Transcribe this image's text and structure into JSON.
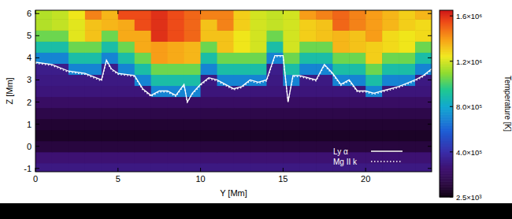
{
  "chart_data": {
    "type": "heatmap",
    "x_label": "Y [Mm]",
    "y_label": "Z [Mm]",
    "xlim": [
      0,
      24
    ],
    "ylim": [
      -1.15,
      6.15
    ],
    "xticks": [
      0,
      5,
      10,
      15,
      20
    ],
    "yticks": [
      -1,
      0,
      1,
      2,
      3,
      4,
      5,
      6
    ],
    "legend": "lower right",
    "cells": {
      "x": [
        0.5,
        1.5,
        2.5,
        3.5,
        4.5,
        5.5,
        6.5,
        7.5,
        8.5,
        9.5,
        10.5,
        11.5,
        12.5,
        13.5,
        14.5,
        15.5,
        16.5,
        17.5,
        18.5,
        19.5,
        20.5,
        21.5,
        22.5,
        23.5
      ],
      "y": [
        -1,
        -0.5,
        0,
        0.5,
        1,
        1.5,
        2,
        2.5,
        3,
        3.5,
        4,
        4.5,
        5,
        5.5,
        6
      ],
      "values": [
        [
          300000,
          300000,
          300000,
          300000,
          300000,
          300000,
          300000,
          300000,
          300000,
          300000,
          300000,
          300000,
          300000,
          300000,
          300000,
          300000,
          300000,
          300000,
          300000,
          300000,
          300000,
          300000,
          300000,
          300000
        ],
        [
          260000,
          260000,
          260000,
          260000,
          260000,
          260000,
          260000,
          260000,
          260000,
          260000,
          260000,
          260000,
          260000,
          260000,
          260000,
          260000,
          260000,
          260000,
          260000,
          260000,
          260000,
          260000,
          260000,
          260000
        ],
        [
          120000,
          120000,
          120000,
          120000,
          120000,
          120000,
          120000,
          120000,
          120000,
          120000,
          120000,
          120000,
          120000,
          120000,
          120000,
          120000,
          120000,
          120000,
          120000,
          120000,
          120000,
          120000,
          120000,
          120000
        ],
        [
          60000,
          60000,
          60000,
          60000,
          60000,
          60000,
          60000,
          60000,
          60000,
          60000,
          60000,
          60000,
          60000,
          60000,
          60000,
          60000,
          60000,
          60000,
          60000,
          60000,
          60000,
          60000,
          60000,
          60000
        ],
        [
          90000,
          90000,
          90000,
          90000,
          90000,
          90000,
          90000,
          90000,
          90000,
          90000,
          90000,
          90000,
          90000,
          90000,
          90000,
          90000,
          90000,
          90000,
          90000,
          90000,
          90000,
          90000,
          90000,
          90000
        ],
        [
          150000,
          150000,
          150000,
          150000,
          150000,
          150000,
          150000,
          150000,
          150000,
          150000,
          150000,
          150000,
          150000,
          150000,
          150000,
          150000,
          150000,
          150000,
          150000,
          150000,
          150000,
          150000,
          150000,
          150000
        ],
        [
          220000,
          220000,
          220000,
          220000,
          220000,
          220000,
          220000,
          220000,
          220000,
          220000,
          220000,
          220000,
          220000,
          220000,
          220000,
          220000,
          220000,
          220000,
          220000,
          220000,
          220000,
          220000,
          220000,
          220000
        ],
        [
          280000,
          280000,
          280000,
          280000,
          280000,
          280000,
          280000,
          700000,
          700000,
          700000,
          280000,
          280000,
          280000,
          280000,
          280000,
          280000,
          280000,
          280000,
          280000,
          280000,
          700000,
          280000,
          280000,
          280000
        ],
        [
          300000,
          300000,
          300000,
          300000,
          300000,
          300000,
          700000,
          900000,
          900000,
          900000,
          300000,
          700000,
          700000,
          700000,
          300000,
          700000,
          300000,
          300000,
          700000,
          700000,
          900000,
          700000,
          700000,
          300000
        ],
        [
          320000,
          320000,
          700000,
          700000,
          320000,
          700000,
          900000,
          1050000,
          1050000,
          1050000,
          700000,
          900000,
          900000,
          900000,
          320000,
          900000,
          700000,
          700000,
          900000,
          900000,
          1050000,
          900000,
          900000,
          700000
        ],
        [
          700000,
          700000,
          900000,
          900000,
          700000,
          900000,
          1050000,
          1400000,
          1375000,
          1350000,
          900000,
          1050000,
          1050000,
          1050000,
          700000,
          1050000,
          900000,
          900000,
          1050000,
          1050000,
          1300000,
          1050000,
          1050000,
          900000
        ],
        [
          900000,
          900000,
          1050000,
          1050000,
          900000,
          1050000,
          1375000,
          1400000,
          1375000,
          1350000,
          1050000,
          1325000,
          1250000,
          1200000,
          900000,
          1200000,
          1050000,
          1050000,
          1350000,
          1325000,
          1300000,
          1275000,
          1250000,
          1050000
        ],
        [
          1050000,
          1050000,
          1225000,
          1325000,
          1050000,
          1375000,
          1375000,
          1600000,
          1550000,
          1500000,
          1325000,
          1325000,
          1250000,
          1200000,
          1050000,
          1200000,
          1300000,
          1325000,
          1350000,
          1325000,
          1400000,
          1275000,
          1250000,
          1275000
        ],
        [
          1150000,
          1175000,
          1225000,
          1325000,
          1350000,
          1375000,
          1550000,
          1600000,
          1550000,
          1500000,
          1325000,
          1450000,
          1300000,
          1200000,
          1175000,
          1200000,
          1300000,
          1325000,
          1500000,
          1450000,
          1400000,
          1350000,
          1300000,
          1275000
        ],
        [
          1150000,
          1175000,
          1250000,
          1450000,
          1350000,
          1550000,
          1550000,
          1600000,
          1550000,
          1500000,
          1450000,
          1450000,
          1300000,
          1200000,
          1175000,
          1200000,
          1400000,
          1450000,
          1500000,
          1450000,
          1400000,
          1350000,
          1300000,
          1350000
        ]
      ]
    },
    "colorbar": {
      "label": "Temperature [K]",
      "range": [
        2500,
        1650000
      ],
      "ticks": [
        {
          "value": 2500,
          "label": "2.5×10³"
        },
        {
          "value": 400000,
          "label": "4.0×10⁵"
        },
        {
          "value": 800000,
          "label": "8.0×10⁵"
        },
        {
          "value": 1200000,
          "label": "1.2×10⁶"
        },
        {
          "value": 1600000,
          "label": "1.6×10⁶"
        }
      ]
    },
    "series": [
      {
        "name": "Ly α",
        "type": "line",
        "color": "#ffffff",
        "line_style": "solid",
        "x": [
          0,
          1,
          2,
          3,
          4,
          4.3,
          4.6,
          5,
          6,
          6.5,
          7,
          7.5,
          8,
          8.5,
          9,
          9.2,
          9.5,
          10,
          10.5,
          11,
          12,
          12.5,
          13,
          13.5,
          14,
          14.5,
          15,
          15.3,
          15.6,
          16,
          17,
          17.5,
          18,
          18.5,
          19,
          19.5,
          20,
          20.5,
          21,
          22,
          23,
          23.5,
          24
        ],
        "values": [
          3.8,
          3.7,
          3.4,
          3.3,
          3.0,
          3.9,
          3.5,
          3.3,
          3.2,
          2.6,
          2.3,
          2.5,
          2.5,
          2.3,
          2.8,
          2.0,
          2.4,
          2.8,
          3.1,
          3.0,
          2.6,
          2.7,
          3.0,
          2.9,
          3.0,
          4.1,
          4.1,
          2.0,
          3.2,
          3.2,
          3.0,
          3.7,
          3.3,
          2.8,
          3.0,
          2.5,
          2.5,
          2.4,
          2.5,
          2.7,
          3.0,
          3.2,
          3.5
        ]
      },
      {
        "name": "Mg II k",
        "type": "line",
        "color": "#ffffff",
        "line_style": "dotted",
        "x": [
          0,
          1,
          2,
          3,
          4,
          4.3,
          4.6,
          5,
          6,
          6.5,
          7,
          7.5,
          8,
          8.5,
          9,
          9.2,
          9.5,
          10,
          10.5,
          11,
          12,
          12.5,
          13,
          13.5,
          14,
          14.5,
          15,
          15.3,
          15.6,
          16,
          17,
          17.5,
          18,
          18.5,
          19,
          19.5,
          20,
          20.5,
          21,
          22,
          23,
          23.5,
          24
        ],
        "values": [
          3.75,
          3.65,
          3.35,
          3.25,
          2.95,
          3.85,
          3.45,
          3.25,
          3.15,
          2.55,
          2.25,
          2.45,
          2.45,
          2.25,
          2.75,
          2.0,
          2.35,
          2.75,
          3.05,
          2.95,
          2.55,
          2.65,
          2.95,
          2.85,
          2.95,
          4.05,
          4.05,
          2.0,
          3.15,
          3.15,
          2.95,
          3.65,
          3.25,
          2.75,
          2.95,
          2.45,
          2.45,
          2.35,
          2.45,
          2.65,
          2.95,
          3.15,
          3.45
        ]
      }
    ]
  }
}
